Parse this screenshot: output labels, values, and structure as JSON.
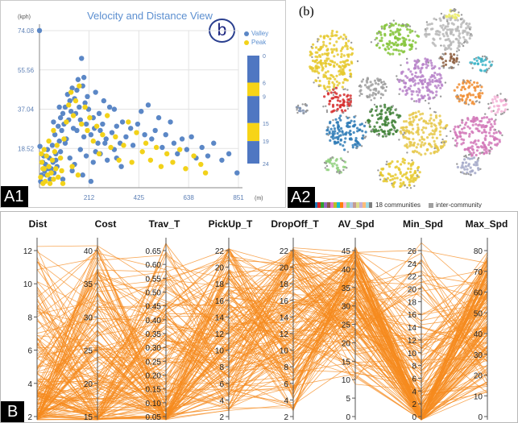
{
  "panel_a1": {
    "tag": "A1",
    "badge": "b",
    "chart_data": {
      "type": "scatter",
      "title": "Velocity and Distance View",
      "ylabel": "(kph)",
      "xlabel": "(m)",
      "x_ticks": [
        "212",
        "425",
        "638",
        "851"
      ],
      "y_ticks": [
        "74.08",
        "55.56",
        "37.04",
        "18.52"
      ],
      "xlim": [
        0,
        851
      ],
      "ylim": [
        0,
        74.08
      ],
      "grid": true,
      "legend_position": "top-right",
      "series": [
        {
          "name": "Valley",
          "color": "#5b87c6",
          "points": [
            [
              0,
              74.1
            ],
            [
              2,
              19.5
            ],
            [
              5,
              3
            ],
            [
              10,
              6
            ],
            [
              14,
              12
            ],
            [
              18,
              15
            ],
            [
              22,
              8
            ],
            [
              26,
              11
            ],
            [
              30,
              6
            ],
            [
              34,
              18
            ],
            [
              38,
              9
            ],
            [
              42,
              14
            ],
            [
              46,
              4
            ],
            [
              50,
              9
            ],
            [
              55,
              20
            ],
            [
              58,
              12
            ],
            [
              62,
              7
            ],
            [
              66,
              25
            ],
            [
              70,
              16
            ],
            [
              75,
              10
            ],
            [
              80,
              29
            ],
            [
              85,
              22
            ],
            [
              90,
              33
            ],
            [
              95,
              27
            ],
            [
              100,
              35
            ],
            [
              105,
              30
            ],
            [
              110,
              38
            ],
            [
              115,
              23
            ],
            [
              120,
              44
            ],
            [
              125,
              32
            ],
            [
              130,
              41
            ],
            [
              135,
              36
            ],
            [
              140,
              47
            ],
            [
              145,
              28
            ],
            [
              150,
              42
            ],
            [
              155,
              35
            ],
            [
              160,
              46
            ],
            [
              165,
              51
            ],
            [
              170,
              38
            ],
            [
              175,
              32
            ],
            [
              180,
              61
            ],
            [
              185,
              48
            ],
            [
              190,
              52
            ],
            [
              195,
              40
            ],
            [
              200,
              30
            ],
            [
              205,
              43
            ],
            [
              210,
              37
            ],
            [
              220,
              25
            ],
            [
              230,
              33
            ],
            [
              235,
              28
            ],
            [
              240,
              45
            ],
            [
              250,
              21
            ],
            [
              255,
              35
            ],
            [
              260,
              27
            ],
            [
              270,
              30
            ],
            [
              275,
              41
            ],
            [
              285,
              23
            ],
            [
              300,
              38
            ],
            [
              310,
              26
            ],
            [
              320,
              37
            ],
            [
              330,
              29
            ],
            [
              345,
              21
            ],
            [
              355,
              31
            ],
            [
              370,
              24
            ],
            [
              390,
              28
            ],
            [
              400,
              20
            ],
            [
              420,
              30
            ],
            [
              435,
              36
            ],
            [
              450,
              25
            ],
            [
              465,
              39
            ],
            [
              480,
              23
            ],
            [
              495,
              27
            ],
            [
              510,
              33
            ],
            [
              525,
              19
            ],
            [
              540,
              25
            ],
            [
              560,
              31
            ],
            [
              575,
              21
            ],
            [
              590,
              16
            ],
            [
              610,
              23
            ],
            [
              630,
              18
            ],
            [
              650,
              24
            ],
            [
              670,
              14
            ],
            [
              695,
              19
            ],
            [
              720,
              15
            ],
            [
              745,
              21
            ],
            [
              780,
              13
            ],
            [
              810,
              16
            ],
            [
              845,
              7
            ],
            [
              70,
              13
            ],
            [
              90,
              17
            ],
            [
              110,
              21
            ],
            [
              130,
              14
            ],
            [
              150,
              11
            ],
            [
              175,
              18
            ],
            [
              200,
              15
            ],
            [
              230,
              12
            ],
            [
              260,
              16
            ],
            [
              290,
              13
            ],
            [
              320,
              18
            ],
            [
              350,
              10
            ],
            [
              100,
              4
            ],
            [
              140,
              8
            ],
            [
              185,
              6
            ],
            [
              220,
              3
            ],
            [
              60,
              31
            ],
            [
              85,
              38
            ],
            [
              160,
              27
            ],
            [
              190,
              24
            ],
            [
              240,
              17
            ],
            [
              280,
              21
            ],
            [
              330,
              14
            ]
          ]
        },
        {
          "name": "Peak",
          "color": "#f2d21a",
          "points": [
            [
              5,
              5
            ],
            [
              10,
              12
            ],
            [
              15,
              2
            ],
            [
              20,
              9
            ],
            [
              25,
              3
            ],
            [
              30,
              15
            ],
            [
              35,
              6
            ],
            [
              40,
              10
            ],
            [
              45,
              2
            ],
            [
              50,
              7
            ],
            [
              55,
              13
            ],
            [
              60,
              4
            ],
            [
              65,
              17
            ],
            [
              70,
              9
            ],
            [
              75,
              20
            ],
            [
              80,
              5
            ],
            [
              90,
              14
            ],
            [
              95,
              8
            ],
            [
              105,
              23
            ],
            [
              115,
              31
            ],
            [
              125,
              39
            ],
            [
              135,
              45
            ],
            [
              145,
              34
            ],
            [
              155,
              41
            ],
            [
              170,
              48
            ],
            [
              180,
              30
            ],
            [
              195,
              38
            ],
            [
              205,
              27
            ],
            [
              215,
              33
            ],
            [
              230,
              22
            ],
            [
              245,
              29
            ],
            [
              255,
              16
            ],
            [
              270,
              25
            ],
            [
              290,
              34
            ],
            [
              305,
              19
            ],
            [
              325,
              24
            ],
            [
              340,
              13
            ],
            [
              360,
              20
            ],
            [
              380,
              31
            ],
            [
              395,
              12
            ],
            [
              415,
              26
            ],
            [
              440,
              17
            ],
            [
              455,
              21
            ],
            [
              475,
              13
            ],
            [
              500,
              19
            ],
            [
              520,
              10
            ],
            [
              545,
              16
            ],
            [
              570,
              12
            ],
            [
              600,
              18
            ],
            [
              625,
              9
            ],
            [
              660,
              15
            ],
            [
              690,
              11
            ],
            [
              710,
              7
            ],
            [
              100,
              2
            ],
            [
              140,
              10
            ],
            [
              165,
              6
            ],
            [
              20,
              18
            ],
            [
              40,
              22
            ],
            [
              60,
              27
            ],
            [
              15,
              9
            ],
            [
              8,
              16
            ]
          ]
        }
      ],
      "colorbar": {
        "ticks": [
          "0",
          "6",
          "9",
          "15",
          "19",
          "24"
        ],
        "bands": [
          {
            "from": 0,
            "to": 6,
            "color": "#4f77c2"
          },
          {
            "from": 6,
            "to": 9,
            "color": "#f7d417"
          },
          {
            "from": 9,
            "to": 15,
            "color": "#4f77c2"
          },
          {
            "from": 15,
            "to": 19,
            "color": "#f7d417"
          },
          {
            "from": 19,
            "to": 24,
            "color": "#4f77c2"
          }
        ]
      }
    }
  },
  "panel_a2": {
    "title": "(b)",
    "tag": "A2",
    "legend_communities": "18 communities",
    "legend_inter": "inter-community",
    "community_colors": [
      "#1f77b4",
      "#d62728",
      "#2ca02c",
      "#9467bd",
      "#8c564b",
      "#e377c2",
      "#bcbd22",
      "#17becf",
      "#ff7f0e",
      "#f7b6d2",
      "#98df8a",
      "#aec7e8",
      "#c49c94",
      "#dbdb8d",
      "#c5b0d5",
      "#ffbb78",
      "#9edae5",
      "#7f7f7f"
    ],
    "clusters": [
      {
        "color": "#e6c92e",
        "cx": 55,
        "cy": 75,
        "rx": 28,
        "ry": 38
      },
      {
        "color": "#85c43a",
        "cx": 135,
        "cy": 48,
        "rx": 28,
        "ry": 20
      },
      {
        "color": "#b8b8b8",
        "cx": 200,
        "cy": 40,
        "rx": 30,
        "ry": 22
      },
      {
        "color": "#ecec6a",
        "cx": 205,
        "cy": 20,
        "rx": 11,
        "ry": 8
      },
      {
        "color": "#d62f2f",
        "cx": 62,
        "cy": 125,
        "rx": 18,
        "ry": 16
      },
      {
        "color": "#2f7bb6",
        "cx": 72,
        "cy": 165,
        "rx": 26,
        "ry": 22
      },
      {
        "color": "#3c7f33",
        "cx": 120,
        "cy": 150,
        "rx": 22,
        "ry": 20
      },
      {
        "color": "#b783c9",
        "cx": 165,
        "cy": 100,
        "rx": 28,
        "ry": 28
      },
      {
        "color": "#e6c84a",
        "cx": 170,
        "cy": 165,
        "rx": 30,
        "ry": 28
      },
      {
        "color": "#f08b2e",
        "cx": 225,
        "cy": 115,
        "rx": 18,
        "ry": 16
      },
      {
        "color": "#d278b8",
        "cx": 235,
        "cy": 168,
        "rx": 30,
        "ry": 26
      },
      {
        "color": "#8b5a3c",
        "cx": 200,
        "cy": 75,
        "rx": 12,
        "ry": 10
      },
      {
        "color": "#3cb4c8",
        "cx": 240,
        "cy": 80,
        "rx": 14,
        "ry": 10
      },
      {
        "color": "#e6c92e",
        "cx": 140,
        "cy": 215,
        "rx": 25,
        "ry": 18
      },
      {
        "color": "#8fd07d",
        "cx": 60,
        "cy": 205,
        "rx": 14,
        "ry": 10
      },
      {
        "color": "#a0a0a0",
        "cx": 105,
        "cy": 110,
        "rx": 18,
        "ry": 14
      },
      {
        "color": "#a4a9c9",
        "cx": 225,
        "cy": 205,
        "rx": 14,
        "ry": 12
      },
      {
        "color": "#f3b2d6",
        "cx": 262,
        "cy": 130,
        "rx": 12,
        "ry": 12
      },
      {
        "color": "#7b8fb0",
        "cx": 18,
        "cy": 135,
        "rx": 8,
        "ry": 6
      }
    ]
  },
  "panel_b": {
    "tag": "B",
    "chart_data": {
      "type": "parallel_coordinates",
      "line_color": "#f58b1f",
      "axes": [
        {
          "name": "Dist",
          "ticks": [
            "12",
            "10",
            "8",
            "6",
            "4",
            "2"
          ]
        },
        {
          "name": "Cost",
          "ticks": [
            "40",
            "35",
            "30",
            "25",
            "20",
            "15"
          ]
        },
        {
          "name": "Trav_T",
          "ticks": [
            "0.65",
            "0.60",
            "0.55",
            "0.50",
            "0.45",
            "0.40",
            "0.35",
            "0.30",
            "0.25",
            "0.20",
            "0.15",
            "0.10",
            "0.05"
          ]
        },
        {
          "name": "PickUp_T",
          "ticks": [
            "22",
            "20",
            "18",
            "16",
            "14",
            "12",
            "10",
            "8",
            "6",
            "4",
            "2"
          ]
        },
        {
          "name": "DropOff_T",
          "ticks": [
            "22",
            "20",
            "18",
            "16",
            "14",
            "12",
            "10",
            "8",
            "6",
            "4",
            "2"
          ]
        },
        {
          "name": "AV_Spd",
          "ticks": [
            "45",
            "40",
            "35",
            "30",
            "25",
            "20",
            "15",
            "10",
            "5",
            "0"
          ]
        },
        {
          "name": "Min_Spd",
          "ticks": [
            "26",
            "24",
            "22",
            "20",
            "18",
            "16",
            "14",
            "12",
            "10",
            "8",
            "6",
            "4",
            "2",
            "0"
          ]
        },
        {
          "name": "Max_Spd",
          "ticks": [
            "80",
            "70",
            "60",
            "50",
            "40",
            "30",
            "20",
            "10",
            "0"
          ]
        }
      ]
    }
  }
}
